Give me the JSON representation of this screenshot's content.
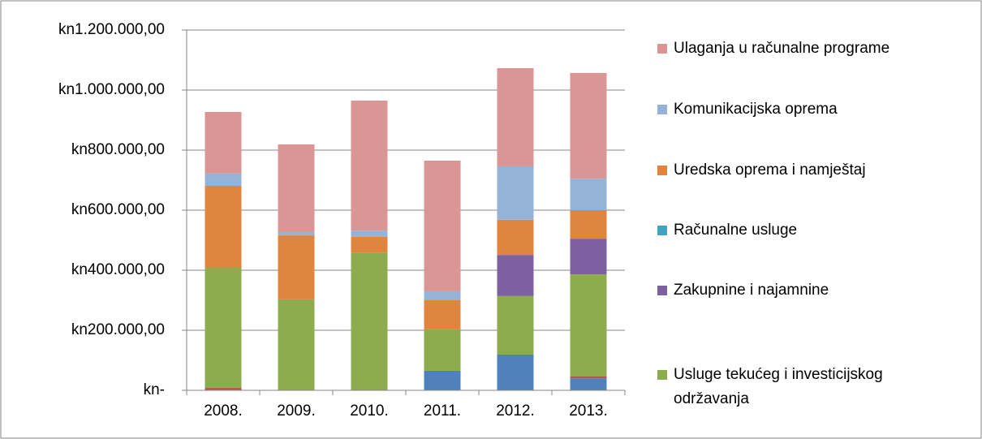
{
  "chart_data": {
    "type": "stacked_bar",
    "categories": [
      "2008.",
      "2009.",
      "2010.",
      "2011.",
      "2012.",
      "2013."
    ],
    "ylim": [
      0,
      1200000
    ],
    "yticks": [
      {
        "value": 0,
        "label": "kn-"
      },
      {
        "value": 200000,
        "label": "kn200.000,00"
      },
      {
        "value": 400000,
        "label": "kn400.000,00"
      },
      {
        "value": 600000,
        "label": "kn600.000,00"
      },
      {
        "value": 800000,
        "label": "kn800.000,00"
      },
      {
        "value": 1000000,
        "label": "kn1.000.000,00"
      },
      {
        "value": 1200000,
        "label": "kn1.200.000,00"
      }
    ],
    "grid": true,
    "series": [
      {
        "color": "#4f81bd",
        "values": [
          0,
          0,
          0,
          65000,
          119000,
          40000
        ]
      },
      {
        "color": "#c0504d",
        "values": [
          8000,
          0,
          0,
          0,
          0,
          6000
        ]
      },
      {
        "name": "Usluge tekućeg i investicijskog održavanja",
        "color": "#8cac4d",
        "values": [
          400000,
          303000,
          459000,
          138000,
          195000,
          340000
        ]
      },
      {
        "name": "Zakupnine i najamnine",
        "color": "#7d60a0",
        "values": [
          0,
          0,
          0,
          0,
          137000,
          119000
        ]
      },
      {
        "name": "Računalne usluge",
        "color": "#3fa5bf",
        "values": [
          0,
          0,
          0,
          0,
          0,
          0
        ]
      },
      {
        "name": "Uredska oprema i namještaj",
        "color": "#e0853d",
        "values": [
          273000,
          213000,
          52000,
          97000,
          117000,
          95000
        ]
      },
      {
        "name": "Komunikacijska oprema",
        "color": "#95b3d7",
        "values": [
          41000,
          11000,
          21000,
          30000,
          178000,
          105000
        ]
      },
      {
        "name": "Ulaganja u računalne programe",
        "color": "#d99694",
        "values": [
          205000,
          292000,
          433000,
          435000,
          327000,
          352000
        ]
      }
    ]
  }
}
